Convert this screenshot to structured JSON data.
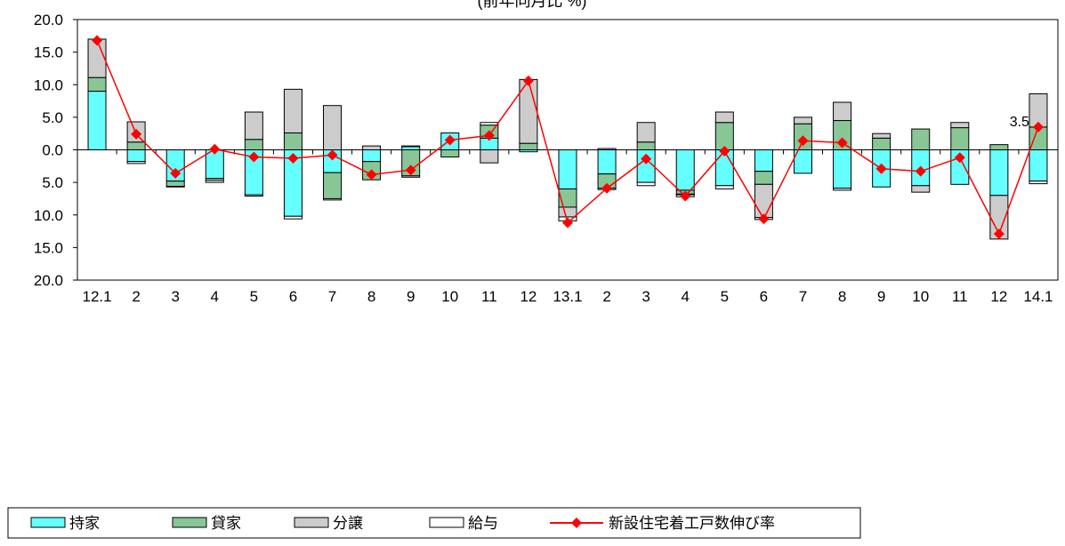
{
  "chart_data": {
    "type": "bar",
    "title": "(前年同月比 %)",
    "categories": [
      "12.1",
      "2",
      "3",
      "4",
      "5",
      "6",
      "7",
      "8",
      "9",
      "10",
      "11",
      "12",
      "13.1",
      "2",
      "3",
      "4",
      "5",
      "6",
      "7",
      "8",
      "9",
      "10",
      "11",
      "12",
      "14.1"
    ],
    "ylim": [
      -20,
      20
    ],
    "yticks": [
      "20.0",
      "15.0",
      "10.0",
      "5.0",
      "0.0",
      "5.0",
      "10.0",
      "15.0",
      "20.0"
    ],
    "stacked": true,
    "series": [
      {
        "name": "持家",
        "color": "#66ffff",
        "values": [
          9.0,
          -1.8,
          -4.8,
          -4.4,
          -6.9,
          -10.2,
          -3.5,
          -1.8,
          0.5,
          2.6,
          1.8,
          -0.3,
          -6.0,
          -3.7,
          -5.0,
          -6.2,
          -5.5,
          -3.3,
          -3.6,
          -5.9,
          -5.7,
          -5.5,
          -5.3,
          -7.0,
          -4.8
        ]
      },
      {
        "name": "貸家",
        "color": "#88c696",
        "values": [
          2.1,
          1.2,
          -0.8,
          0,
          1.6,
          2.6,
          -4.0,
          -2.8,
          -4.0,
          -1.1,
          2.0,
          1.0,
          -2.8,
          -2.2,
          1.2,
          -0.6,
          4.2,
          -2.0,
          4.0,
          4.5,
          1.8,
          3.2,
          3.4,
          0.8,
          3.5
        ]
      },
      {
        "name": "分譲",
        "color": "#cccccc",
        "values": [
          5.9,
          3.1,
          -0.1,
          -0.3,
          4.2,
          6.7,
          6.8,
          0.6,
          0.1,
          0,
          -2.0,
          9.8,
          -1.5,
          0.2,
          3.0,
          -0.1,
          1.6,
          -5.1,
          1.0,
          2.8,
          0.7,
          -1.0,
          0.8,
          -6.7,
          5.1
        ]
      },
      {
        "name": "給与",
        "color": "#ffffff",
        "values": [
          0,
          -0.3,
          0,
          -0.3,
          -0.2,
          -0.4,
          -0.2,
          0,
          -0.2,
          0,
          0.4,
          0,
          -0.6,
          -0.2,
          -0.5,
          -0.3,
          -0.5,
          -0.3,
          0,
          -0.3,
          0,
          0,
          0,
          0,
          -0.4
        ]
      }
    ],
    "line": {
      "name": "新設住宅着工戸数伸び率",
      "color": "#ff0000",
      "values": [
        16.8,
        2.4,
        -3.6,
        0.1,
        -1.1,
        -1.3,
        -0.8,
        -3.8,
        -3.1,
        1.5,
        2.2,
        10.6,
        -11.2,
        -5.9,
        -1.4,
        -7.1,
        -0.2,
        -10.6,
        1.4,
        1.1,
        -2.9,
        -3.3,
        -1.2,
        -12.9,
        3.5
      ]
    },
    "annotations": [
      {
        "text": "3.5"
      }
    ],
    "grid": false,
    "legend_position": "bottom"
  }
}
